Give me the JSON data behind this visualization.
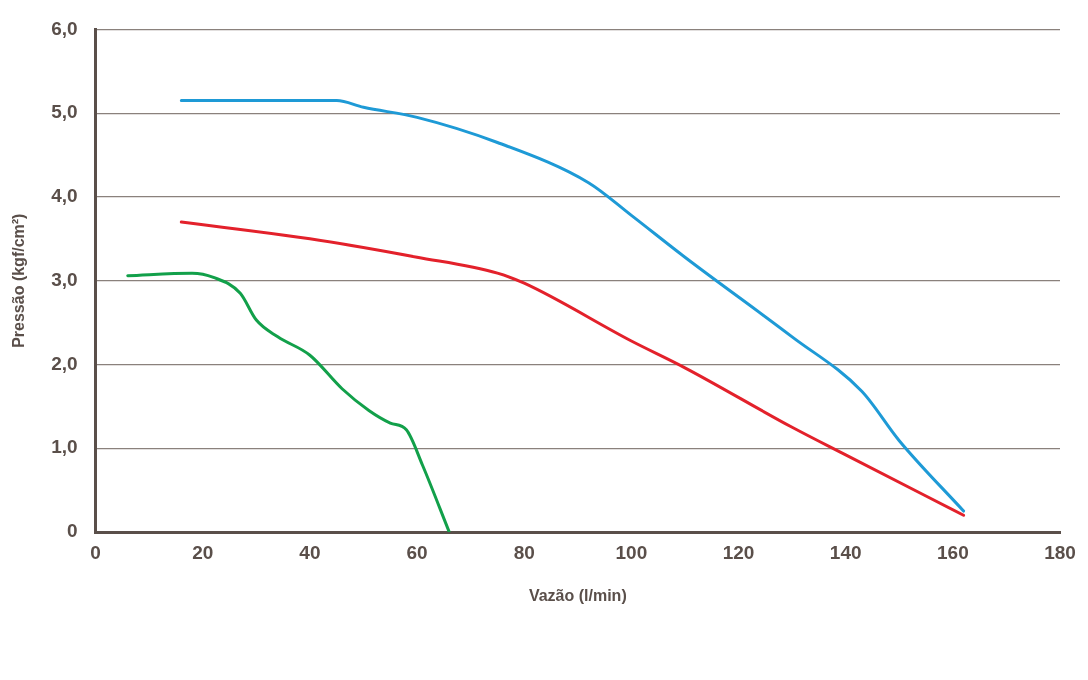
{
  "chart_data": {
    "type": "line",
    "xlabel": "Vazão (l/min)",
    "ylabel": "Pressão (kgf/cm²)",
    "xlim": [
      0,
      180
    ],
    "xticks": [
      0,
      20,
      40,
      60,
      80,
      100,
      120,
      140,
      160,
      180
    ],
    "ylim": [
      0,
      6
    ],
    "yticks": [
      {
        "value": 0,
        "label": "0"
      },
      {
        "value": 1,
        "label": "1,0"
      },
      {
        "value": 2,
        "label": "2,0"
      },
      {
        "value": 3,
        "label": "3,0"
      },
      {
        "value": 4,
        "label": "4,0"
      },
      {
        "value": 5,
        "label": "5,0"
      },
      {
        "value": 6,
        "label": "6,0"
      }
    ],
    "grid": "y",
    "legend": false,
    "marker": "none",
    "line_style": "solid",
    "series": [
      {
        "color": "#e3212b",
        "x": [
          16,
          40,
          60,
          75,
          80,
          100,
          110,
          130,
          140,
          162
        ],
        "values": [
          3.7,
          3.5,
          3.28,
          3.09,
          2.97,
          2.28,
          1.96,
          1.25,
          0.92,
          0.2
        ]
      },
      {
        "color": "#1e9ad6",
        "x": [
          16,
          45,
          50,
          60,
          75,
          92,
          100,
          110,
          130,
          143,
          150,
          162
        ],
        "values": [
          5.15,
          5.15,
          5.07,
          4.95,
          4.65,
          4.17,
          3.78,
          3.28,
          2.33,
          1.68,
          1.09,
          0.25
        ]
      },
      {
        "color": "#12a04a",
        "x": [
          6,
          18,
          22,
          27,
          30,
          34,
          40,
          46,
          51,
          55,
          58,
          61,
          66
        ],
        "values": [
          3.06,
          3.09,
          3.04,
          2.85,
          2.53,
          2.33,
          2.11,
          1.71,
          1.45,
          1.3,
          1.22,
          0.8,
          0
        ]
      }
    ]
  }
}
